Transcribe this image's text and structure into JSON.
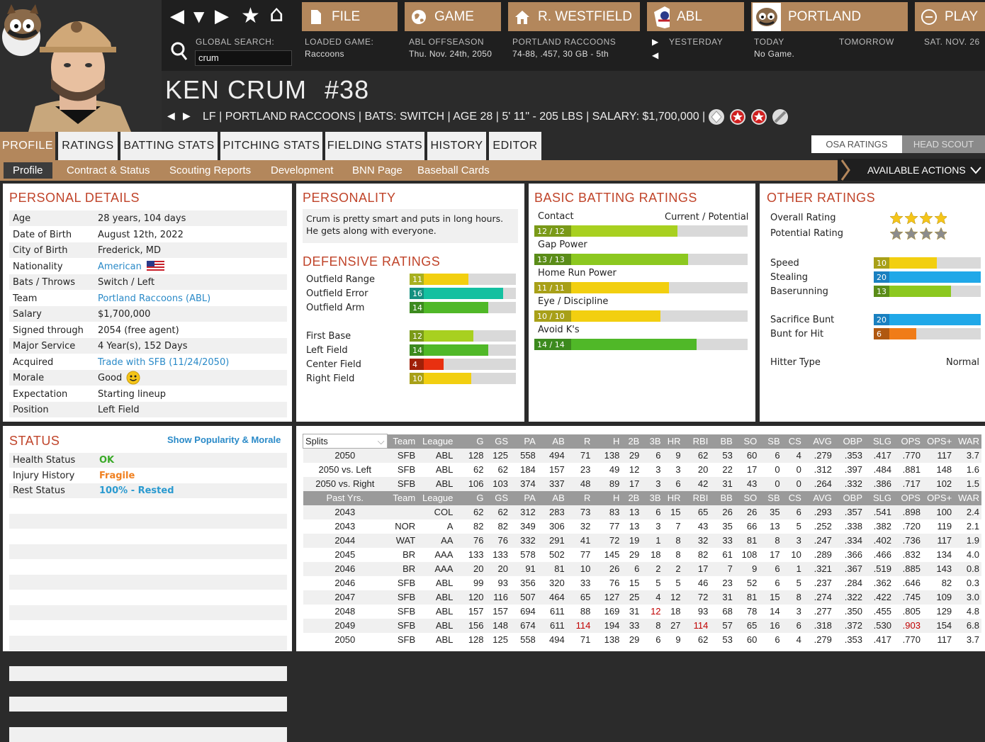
{
  "topbar": {
    "nav_buttons": [
      {
        "name": "back",
        "glyph": "◀"
      },
      {
        "name": "dropdown",
        "glyph": "▼"
      },
      {
        "name": "forward",
        "glyph": "▶"
      },
      {
        "name": "favorite",
        "glyph": "★"
      },
      {
        "name": "home",
        "glyph": "⌂"
      }
    ],
    "main_buttons": [
      {
        "label": "FILE",
        "icon": "file-icon"
      },
      {
        "label": "GAME",
        "icon": "globe-icon"
      },
      {
        "label": "R. WESTFIELD",
        "icon": "house-icon"
      },
      {
        "label": "ABL",
        "icon": "league-logo-icon"
      },
      {
        "label": "PORTLAND",
        "icon": "team-logo-icon"
      },
      {
        "label": "PLAY",
        "icon": "play-icon"
      }
    ],
    "global_search_label": "GLOBAL SEARCH:",
    "search_value": "crum",
    "loaded_game_label": "LOADED GAME:",
    "loaded_game_value": "Raccoons",
    "offseason_label": "ABL OFFSEASON",
    "offseason_date": "Thu. Nov. 24th, 2050",
    "team_label": "PORTLAND RACCOONS",
    "team_record": "74-88, .457, 30 GB - 5th",
    "yesterday_label": "YESTERDAY",
    "today_label": "TODAY",
    "today_value": "No Game.",
    "tomorrow_label": "TOMORROW",
    "future_label": "SAT. NOV. 26"
  },
  "player": {
    "name": "KEN CRUM",
    "number": "#38",
    "info": "LF | PORTLAND RACCOONS  |  BATS: SWITCH  |  AGE 28  |  5' 11\" - 205 LBS  |  SALARY: $1,700,000  |"
  },
  "tabs": [
    "PROFILE",
    "RATINGS",
    "BATTING STATS",
    "PITCHING STATS",
    "FIELDING STATS",
    "HISTORY",
    "EDITOR"
  ],
  "rating_toggle": [
    "OSA RATINGS",
    "HEAD SCOUT"
  ],
  "subnav": [
    "Profile",
    "Contract & Status",
    "Scouting Reports",
    "Development",
    "BNN Page",
    "Baseball Cards"
  ],
  "available_actions": "AVAILABLE ACTIONS",
  "personal": {
    "title": "PERSONAL DETAILS",
    "rows": [
      {
        "label": "Age",
        "value": "28 years, 104 days"
      },
      {
        "label": "Date of Birth",
        "value": "August 12th, 2022"
      },
      {
        "label": "City of Birth",
        "value": "Frederick, MD"
      },
      {
        "label": "Nationality",
        "value": "American"
      },
      {
        "label": "Bats / Throws",
        "value": "Switch / Left"
      },
      {
        "label": "Team",
        "value": "Portland Raccoons (ABL)"
      },
      {
        "label": "Salary",
        "value": "$1,700,000"
      },
      {
        "label": "Signed through",
        "value": "2054 (free agent)"
      },
      {
        "label": "Major Service",
        "value": "4 Year(s), 152 Days"
      },
      {
        "label": "Acquired",
        "value": "Trade with SFB (11/24/2050)"
      },
      {
        "label": "Morale",
        "value": "Good"
      },
      {
        "label": "Expectation",
        "value": "Starting lineup"
      },
      {
        "label": "Position",
        "value": "Left Field"
      }
    ]
  },
  "personality": {
    "title": "PERSONALITY",
    "text1": "Crum is pretty smart and puts in long hours.",
    "text2": "He gets along with everyone."
  },
  "defensive": {
    "title": "DEFENSIVE RATINGS",
    "rows": [
      {
        "label": "Outfield Range",
        "value": "11",
        "fraction": 0.55,
        "color": "#f2cf10",
        "numbg": "#a8b020"
      },
      {
        "label": "Outfield Error",
        "value": "16",
        "fraction": 0.88,
        "color": "#14c0a0",
        "numbg": "#149080"
      },
      {
        "label": "Outfield Arm",
        "value": "14",
        "fraction": 0.74,
        "color": "#50b828",
        "numbg": "#3c8a1e"
      },
      {
        "label": "First Base",
        "value": "12",
        "fraction": 0.6,
        "color": "#a8d020",
        "numbg": "#7a9a18"
      },
      {
        "label": "Left Field",
        "value": "14",
        "fraction": 0.74,
        "color": "#50b828",
        "numbg": "#3c8a1e"
      },
      {
        "label": "Center Field",
        "value": "4",
        "fraction": 0.32,
        "color": "#e83010",
        "numbg": "#a02008"
      },
      {
        "label": "Right Field",
        "value": "10",
        "fraction": 0.58,
        "color": "#f2cf10",
        "numbg": "#a8a018"
      }
    ]
  },
  "batting": {
    "title": "BASIC BATTING RATINGS",
    "header_cur": "Current / Potential",
    "rows": [
      {
        "label": "Contact",
        "value": "12 / 12",
        "fraction": 0.67,
        "color": "#a8d020",
        "numbg": "#7a9a18"
      },
      {
        "label": "Gap Power",
        "value": "13 / 13",
        "fraction": 0.72,
        "color": "#8cc820",
        "numbg": "#5a8c18"
      },
      {
        "label": "Home Run Power",
        "value": "11 / 11",
        "fraction": 0.63,
        "color": "#f2cf10",
        "numbg": "#a8a018"
      },
      {
        "label": "Eye / Discipline",
        "value": "10 / 10",
        "fraction": 0.59,
        "color": "#f2cf10",
        "numbg": "#a8a018"
      },
      {
        "label": "Avoid K's",
        "value": "14 / 14",
        "fraction": 0.76,
        "color": "#50b828",
        "numbg": "#3c8a1e"
      }
    ]
  },
  "other": {
    "title": "OTHER RATINGS",
    "overall_label": "Overall Rating",
    "potential_label": "Potential Rating",
    "overall_stars": 4,
    "potential_stars": 4,
    "rows": [
      {
        "label": "Speed",
        "value": "10",
        "fraction": 0.59,
        "color": "#f2cf10",
        "numbg": "#a8a018"
      },
      {
        "label": "Stealing",
        "value": "20",
        "fraction": 1.0,
        "color": "#20a8e8",
        "numbg": "#1a80c0"
      },
      {
        "label": "Baserunning",
        "value": "13",
        "fraction": 0.72,
        "color": "#8cc820",
        "numbg": "#5a8c18"
      },
      {
        "label": "Sacrifice Bunt",
        "value": "20",
        "fraction": 1.0,
        "color": "#20a8e8",
        "numbg": "#1a80c0"
      },
      {
        "label": "Bunt for Hit",
        "value": "6",
        "fraction": 0.4,
        "color": "#f07c18",
        "numbg": "#b05810"
      }
    ],
    "hitter_type_label": "Hitter Type",
    "hitter_type_value": "Normal"
  },
  "status": {
    "title": "STATUS",
    "link": "Show Popularity & Morale",
    "rows": [
      {
        "label": "Health Status",
        "value": "OK",
        "color": "#3aaa28"
      },
      {
        "label": "Injury History",
        "value": "Fragile",
        "color": "#f08020"
      },
      {
        "label": "Rest Status",
        "value": "100% - Rested",
        "color": "#2a9ad0"
      }
    ]
  },
  "stats": {
    "splits_label": "Splits",
    "header1": [
      "Team",
      "League",
      "G",
      "GS",
      "PA",
      "AB",
      "R",
      "H",
      "2B",
      "3B",
      "HR",
      "RBI",
      "BB",
      "SO",
      "SB",
      "CS",
      "AVG",
      "OBP",
      "SLG",
      "OPS",
      "OPS+",
      "WAR"
    ],
    "splits": [
      [
        "2050",
        "SFB",
        "ABL",
        "128",
        "125",
        "558",
        "494",
        "71",
        "138",
        "29",
        "6",
        "9",
        "62",
        "53",
        "60",
        "6",
        "4",
        ".279",
        ".353",
        ".417",
        ".770",
        "117",
        "3.7"
      ],
      [
        "2050 vs. Left",
        "SFB",
        "ABL",
        "62",
        "62",
        "184",
        "157",
        "23",
        "49",
        "12",
        "3",
        "3",
        "20",
        "22",
        "17",
        "0",
        "0",
        ".312",
        ".397",
        ".484",
        ".881",
        "148",
        "1.6"
      ],
      [
        "2050 vs. Right",
        "SFB",
        "ABL",
        "106",
        "103",
        "374",
        "337",
        "48",
        "89",
        "17",
        "3",
        "6",
        "42",
        "31",
        "43",
        "0",
        "0",
        ".264",
        ".332",
        ".386",
        ".717",
        "102",
        "1.5"
      ]
    ],
    "past_label": "Past Yrs.",
    "past": [
      [
        "2043",
        "",
        "COL",
        "62",
        "62",
        "312",
        "283",
        "73",
        "83",
        "13",
        "6",
        "15",
        "65",
        "26",
        "26",
        "35",
        "6",
        ".293",
        ".357",
        ".541",
        ".898",
        "100",
        "2.4"
      ],
      [
        "2043",
        "NOR",
        "A",
        "82",
        "82",
        "349",
        "306",
        "32",
        "77",
        "13",
        "3",
        "7",
        "43",
        "35",
        "66",
        "13",
        "5",
        ".252",
        ".338",
        ".382",
        ".720",
        "119",
        "2.1"
      ],
      [
        "2044",
        "WAT",
        "AA",
        "76",
        "76",
        "332",
        "291",
        "41",
        "72",
        "19",
        "1",
        "8",
        "32",
        "33",
        "81",
        "8",
        "3",
        ".247",
        ".334",
        ".402",
        ".736",
        "117",
        "1.9"
      ],
      [
        "2045",
        "BR",
        "AAA",
        "133",
        "133",
        "578",
        "502",
        "77",
        "145",
        "29",
        "18",
        "8",
        "82",
        "61",
        "108",
        "17",
        "10",
        ".289",
        ".366",
        ".466",
        ".832",
        "134",
        "4.0"
      ],
      [
        "2046",
        "BR",
        "AAA",
        "20",
        "20",
        "91",
        "81",
        "10",
        "26",
        "6",
        "2",
        "2",
        "17",
        "7",
        "9",
        "6",
        "1",
        ".321",
        ".367",
        ".519",
        ".885",
        "143",
        "0.8"
      ],
      [
        "2046",
        "SFB",
        "ABL",
        "99",
        "93",
        "356",
        "320",
        "33",
        "76",
        "15",
        "5",
        "5",
        "46",
        "23",
        "52",
        "6",
        "5",
        ".237",
        ".284",
        ".362",
        ".646",
        "82",
        "0.3"
      ],
      [
        "2047",
        "SFB",
        "ABL",
        "120",
        "116",
        "507",
        "464",
        "65",
        "127",
        "25",
        "4",
        "12",
        "72",
        "31",
        "81",
        "15",
        "8",
        ".274",
        ".322",
        ".422",
        ".745",
        "109",
        "3.0"
      ],
      [
        "2048",
        "SFB",
        "ABL",
        "157",
        "157",
        "694",
        "611",
        "88",
        "169",
        "31",
        "12",
        "18",
        "93",
        "68",
        "78",
        "14",
        "3",
        ".277",
        ".350",
        ".455",
        ".805",
        "129",
        "4.8"
      ],
      [
        "2049",
        "SFB",
        "ABL",
        "156",
        "148",
        "674",
        "611",
        "114",
        "194",
        "33",
        "8",
        "27",
        "114",
        "57",
        "65",
        "16",
        "6",
        ".318",
        ".372",
        ".530",
        ".903",
        "154",
        "6.8"
      ],
      [
        "2050",
        "SFB",
        "ABL",
        "128",
        "125",
        "558",
        "494",
        "71",
        "138",
        "29",
        "6",
        "9",
        "62",
        "53",
        "60",
        "6",
        "4",
        ".279",
        ".353",
        ".417",
        ".770",
        "117",
        "3.7"
      ]
    ]
  }
}
